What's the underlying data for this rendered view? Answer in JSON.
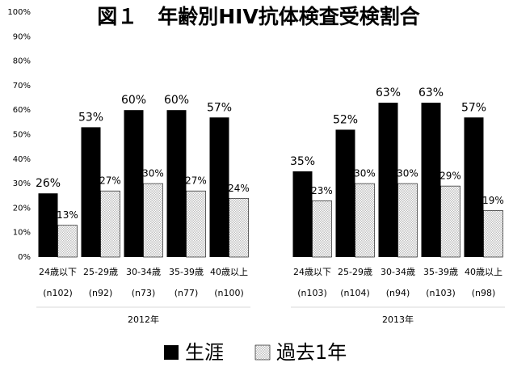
{
  "chart_data": {
    "type": "bar",
    "title": "図１　年齢別HIV抗体検査受検割合",
    "categories": [
      "24歳以下",
      "25-29歳",
      "30-34歳",
      "35-39歳",
      "40歳以上",
      "24歳以下",
      "25-29歳",
      "30-34歳",
      "35-39歳",
      "40歳以上"
    ],
    "n_labels": [
      "(n102)",
      "(n92)",
      "(n73)",
      "(n77)",
      "(n100)",
      "(n103)",
      "(n104)",
      "(n94)",
      "(n103)",
      "(n98)"
    ],
    "groups": [
      "2012年",
      "2013年"
    ],
    "series": [
      {
        "name": "生涯",
        "color": "#000000",
        "values": [
          26,
          53,
          60,
          60,
          57,
          35,
          52,
          63,
          63,
          57
        ],
        "value_labels": [
          "26%",
          "53%",
          "60%",
          "60%",
          "57%",
          "35%",
          "52%",
          "63%",
          "63%",
          "57%"
        ]
      },
      {
        "name": "過去1年",
        "color": "#bfbfbf",
        "values": [
          13,
          27,
          30,
          27,
          24,
          23,
          30,
          30,
          29,
          19
        ],
        "value_labels": [
          "13%",
          "27%",
          "30%",
          "27%",
          "24%",
          "23%",
          "30%",
          "30%",
          "29%",
          "19%"
        ]
      }
    ],
    "ylim": [
      0,
      100
    ],
    "yticks": [
      {
        "value": 0,
        "label": "0%"
      },
      {
        "value": 10,
        "label": "10%"
      },
      {
        "value": 20,
        "label": "20%"
      },
      {
        "value": 30,
        "label": "30%"
      },
      {
        "value": 40,
        "label": "40%"
      },
      {
        "value": 50,
        "label": "50%"
      },
      {
        "value": 60,
        "label": "60%"
      },
      {
        "value": 70,
        "label": "70%"
      },
      {
        "value": 80,
        "label": "80%"
      },
      {
        "value": 90,
        "label": "90%"
      },
      {
        "value": 100,
        "label": "100%"
      }
    ],
    "grid": false,
    "legend": "bottom"
  }
}
